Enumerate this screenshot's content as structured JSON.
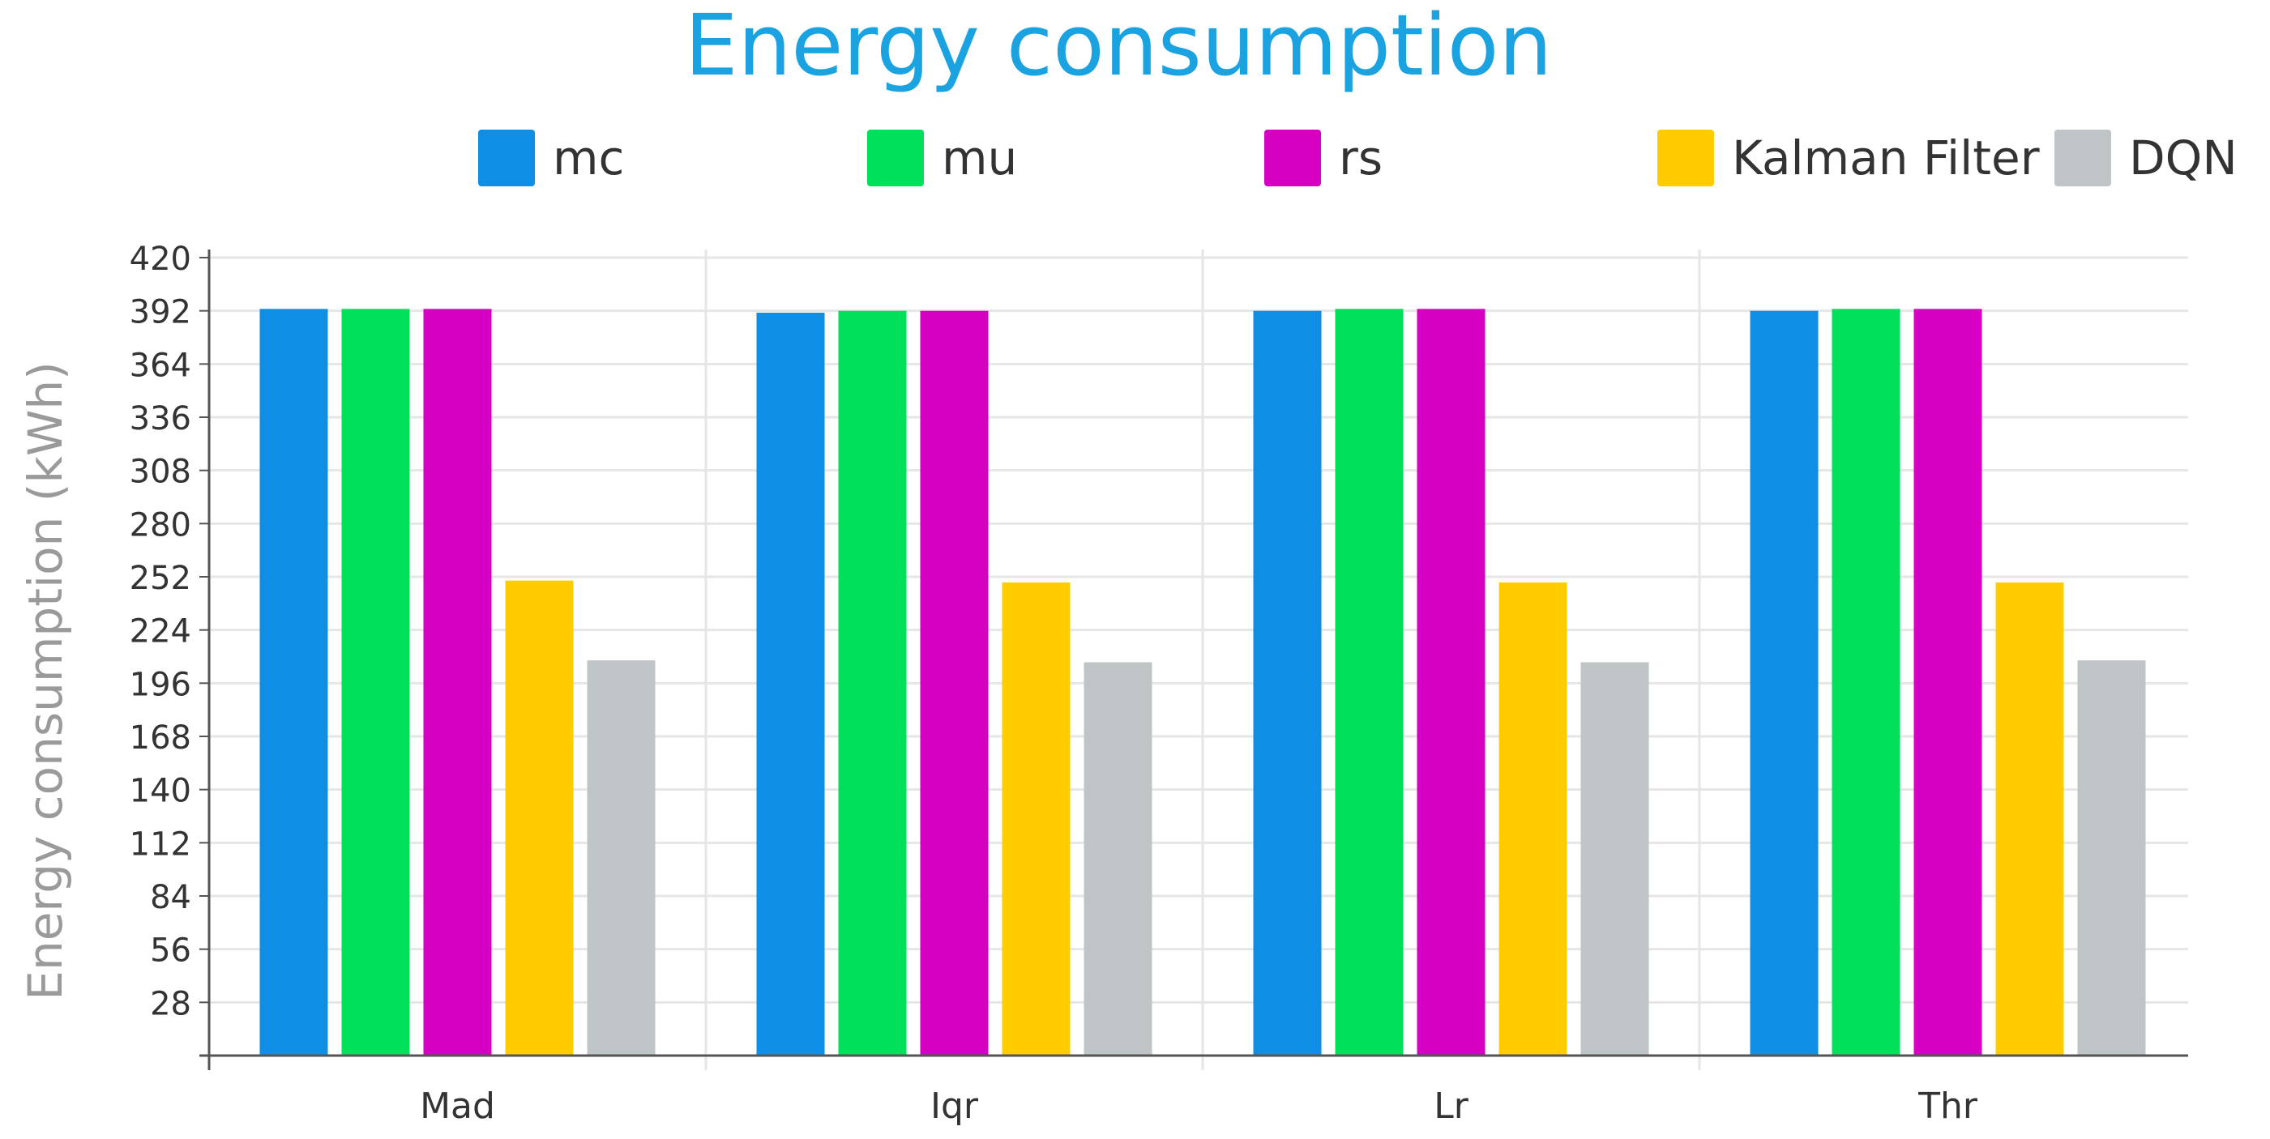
{
  "chart_data": {
    "type": "bar",
    "title": "Energy consumption",
    "xlabel": "",
    "ylabel": "Energy consumption (kWh)",
    "ylim": [
      0,
      420
    ],
    "yticks": [
      28,
      56,
      84,
      112,
      140,
      168,
      196,
      224,
      252,
      280,
      308,
      336,
      364,
      392,
      420
    ],
    "grid": true,
    "legend_position": "top",
    "categories": [
      "Mad",
      "Iqr",
      "Lr",
      "Thr"
    ],
    "series": [
      {
        "name": "mc",
        "color": "#0e8ee4",
        "values": [
          393,
          391,
          392,
          392
        ]
      },
      {
        "name": "mu",
        "color": "#00e05a",
        "values": [
          393,
          392,
          393,
          393
        ]
      },
      {
        "name": "rs",
        "color": "#d600c2",
        "values": [
          393,
          392,
          393,
          393
        ]
      },
      {
        "name": "Kalman Filter",
        "color": "#ffcc00",
        "values": [
          250,
          249,
          249,
          249
        ]
      },
      {
        "name": "DQN",
        "color": "#bfc4c7",
        "values": [
          208,
          207,
          207,
          208
        ]
      }
    ]
  },
  "colors": {
    "title": "#1aa3e0",
    "axis_label": "#9a9a9a",
    "tick_label": "#333333",
    "grid": "#e6e6e6",
    "axis": "#555555"
  }
}
